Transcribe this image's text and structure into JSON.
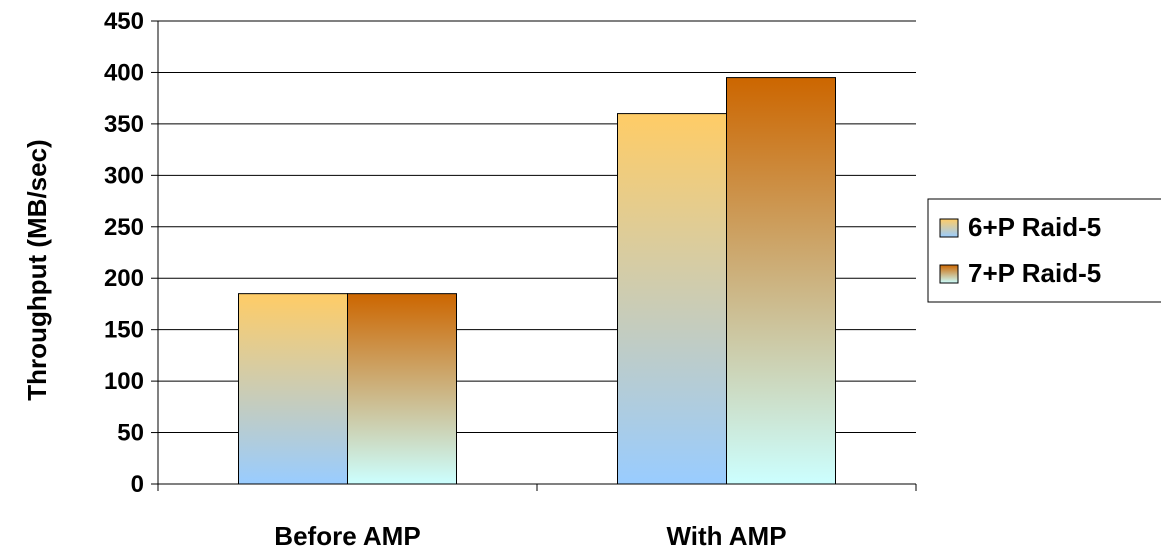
{
  "chart_data": {
    "type": "bar",
    "categories": [
      "Before AMP",
      "With AMP"
    ],
    "series": [
      {
        "name": "6+P Raid-5",
        "values": [
          185,
          360
        ],
        "gradient": [
          "#FFCC66",
          "#99CCFF"
        ]
      },
      {
        "name": "7+P Raid-5",
        "values": [
          185,
          395
        ],
        "gradient": [
          "#CC6600",
          "#CCFFFF"
        ]
      }
    ],
    "title": "",
    "xlabel": "",
    "ylabel": "Throughput (MB/sec)",
    "ylim": [
      0,
      450
    ],
    "yticks": [
      0,
      50,
      100,
      150,
      200,
      250,
      300,
      350,
      400,
      450
    ],
    "ytick_labels": [
      "0",
      "50",
      "100",
      "150",
      "200",
      "250",
      "300",
      "350",
      "400",
      "450"
    ],
    "grid": true,
    "legend": "right"
  }
}
